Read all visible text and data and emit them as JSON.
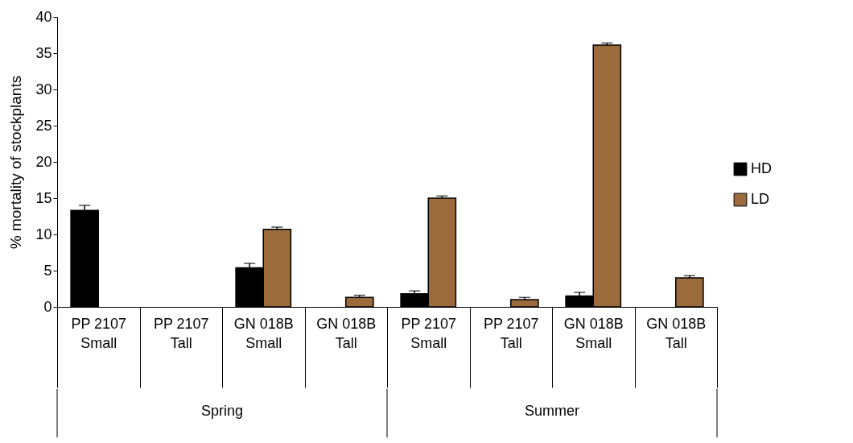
{
  "chart_data": {
    "type": "bar",
    "ylabel": "% mortality of stockplants",
    "categories": [
      "PP 2107\nSmall",
      "PP 2107\nTall",
      "GN 018B\nSmall",
      "GN 018B\nTall",
      "PP 2107\nSmall",
      "PP 2107\nTall",
      "GN 018B\nSmall",
      "GN 018B\nTall"
    ],
    "annotations": [
      "Spring",
      "Summer"
    ],
    "series": [
      {
        "name": "HD",
        "color": "#000000",
        "values": [
          13.3,
          0,
          5.4,
          0,
          1.8,
          0,
          1.5,
          0
        ],
        "errors": [
          0.7,
          null,
          0.6,
          null,
          0.4,
          null,
          0.5,
          null
        ]
      },
      {
        "name": "LD",
        "color": "#9c6b3c",
        "values": [
          0,
          0,
          10.7,
          1.3,
          15.0,
          1.0,
          36.1,
          4.0
        ],
        "errors": [
          null,
          null,
          0.3,
          0.3,
          0.3,
          0.3,
          0.3,
          0.3
        ]
      }
    ],
    "ylim": [
      0,
      40
    ],
    "yticks": [
      0,
      5,
      10,
      15,
      20,
      25,
      30,
      35,
      40
    ],
    "grid": false,
    "legend": "right"
  }
}
